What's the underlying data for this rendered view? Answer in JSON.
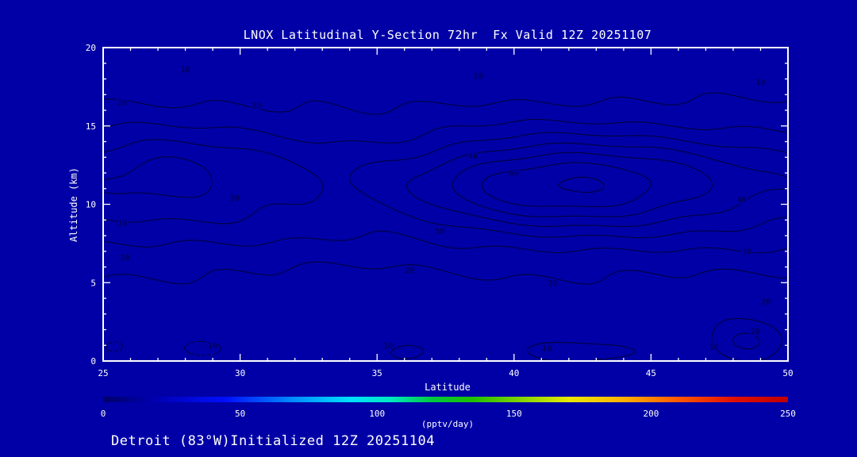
{
  "title": "LNOX Latitudinal Y-Section 72hr  Fx Valid 12Z 20251107",
  "footer": "Detroit (83°W)Initialized 12Z 20251104",
  "colors": {
    "background": "#0000A6",
    "frame": "#FFFFFF",
    "text": "#FFFFFF",
    "contour": "#000040"
  },
  "chart_data": {
    "type": "contour",
    "title": "LNOX Latitudinal Y-Section 72hr  Fx Valid 12Z 20251107",
    "subtitle": "Detroit (83°W)Initialized 12Z 20251104",
    "xlabel": "Latitude",
    "ylabel": "Altitude (km)",
    "xlim": [
      25,
      50
    ],
    "ylim": [
      0,
      20
    ],
    "x_ticks": [
      25,
      30,
      35,
      40,
      45,
      50
    ],
    "y_ticks": [
      0,
      5,
      10,
      15,
      20
    ],
    "x_minor_step": 1,
    "y_minor_step": 1,
    "levels": [
      -10,
      10,
      20,
      30,
      40,
      50,
      60,
      70
    ],
    "negative_style": "dashed",
    "grid": false,
    "units": "pptv/day",
    "field": {
      "band": {
        "amp": 34,
        "a_center": 11,
        "a_sigma": 5.0,
        "dip_center": 35,
        "dip_sigma": 3.5,
        "dip_frac": 0.25
      },
      "gaussians": [
        {
          "amp": 38,
          "l": 42.0,
          "ls": 5.5,
          "a": 11.3,
          "as": 2.6
        },
        {
          "amp": 12,
          "l": 27.3,
          "ls": 2.8,
          "a": 12.2,
          "as": 2.1
        },
        {
          "amp": 14,
          "l": 36.0,
          "ls": 1.2,
          "a": 0.5,
          "as": 0.9
        },
        {
          "amp": 16,
          "l": 42.5,
          "ls": 2.5,
          "a": 0.6,
          "as": 0.8
        },
        {
          "amp": 21,
          "l": 48.5,
          "ls": 1.5,
          "a": 1.2,
          "as": 1.4
        },
        {
          "amp": -14,
          "l": 28.7,
          "ls": 1.3,
          "a": 0.8,
          "as": 0.8
        },
        {
          "amp": -13,
          "l": 25.5,
          "ls": 1.0,
          "a": 1.0,
          "as": 1.0
        }
      ],
      "noise": [
        {
          "amp": 1.3,
          "kl": 1.7,
          "ka": 0.9,
          "ph": 0.0
        },
        {
          "amp": 1.0,
          "kl": 0.45,
          "ka": 1.35,
          "ph": 1.2
        }
      ]
    },
    "labels": [
      {
        "text": "10",
        "lat": 28.0,
        "alt": 18.6
      },
      {
        "text": "20",
        "lat": 38.7,
        "alt": 18.2
      },
      {
        "text": "10",
        "lat": 49.0,
        "alt": 17.8
      },
      {
        "text": "30",
        "lat": 30.6,
        "alt": 16.3
      },
      {
        "text": "20",
        "lat": 25.7,
        "alt": 16.5
      },
      {
        "text": "40",
        "lat": 38.5,
        "alt": 13.1
      },
      {
        "text": "30",
        "lat": 29.8,
        "alt": 10.4
      },
      {
        "text": "10",
        "lat": 25.7,
        "alt": 8.8
      },
      {
        "text": "20",
        "lat": 25.8,
        "alt": 6.6
      },
      {
        "text": "50",
        "lat": 37.3,
        "alt": 8.3
      },
      {
        "text": "60",
        "lat": 40.0,
        "alt": 12.0
      },
      {
        "text": "40",
        "lat": 48.3,
        "alt": 10.3
      },
      {
        "text": "30",
        "lat": 48.5,
        "alt": 7.0
      },
      {
        "text": "20",
        "lat": 49.2,
        "alt": 3.8
      },
      {
        "text": "10",
        "lat": 47.3,
        "alt": 0.9
      },
      {
        "text": "20",
        "lat": 36.2,
        "alt": 5.8
      },
      {
        "text": "30",
        "lat": 41.4,
        "alt": 5.0
      },
      {
        "text": "10",
        "lat": 35.4,
        "alt": 1.0
      },
      {
        "text": "-10",
        "lat": 28.9,
        "alt": 1.0
      },
      {
        "text": "10",
        "lat": 41.2,
        "alt": 0.8
      },
      {
        "text": "20",
        "lat": 48.8,
        "alt": 1.9
      }
    ],
    "colorbar": {
      "min": 0,
      "max": 250,
      "ticks": [
        0,
        50,
        100,
        150,
        200,
        250
      ],
      "label": "(pptv/day)",
      "stops": [
        {
          "off": 0.0,
          "color": "#00006A"
        },
        {
          "off": 0.08,
          "color": "#0000B4"
        },
        {
          "off": 0.18,
          "color": "#0010FF"
        },
        {
          "off": 0.28,
          "color": "#0090FF"
        },
        {
          "off": 0.36,
          "color": "#00E0FF"
        },
        {
          "off": 0.42,
          "color": "#00E8C0"
        },
        {
          "off": 0.48,
          "color": "#00C840"
        },
        {
          "off": 0.54,
          "color": "#20C000"
        },
        {
          "off": 0.62,
          "color": "#90D800"
        },
        {
          "off": 0.68,
          "color": "#E8E800"
        },
        {
          "off": 0.76,
          "color": "#FFB000"
        },
        {
          "off": 0.84,
          "color": "#FF5800"
        },
        {
          "off": 0.92,
          "color": "#E01000"
        },
        {
          "off": 1.0,
          "color": "#C00000"
        }
      ]
    }
  }
}
